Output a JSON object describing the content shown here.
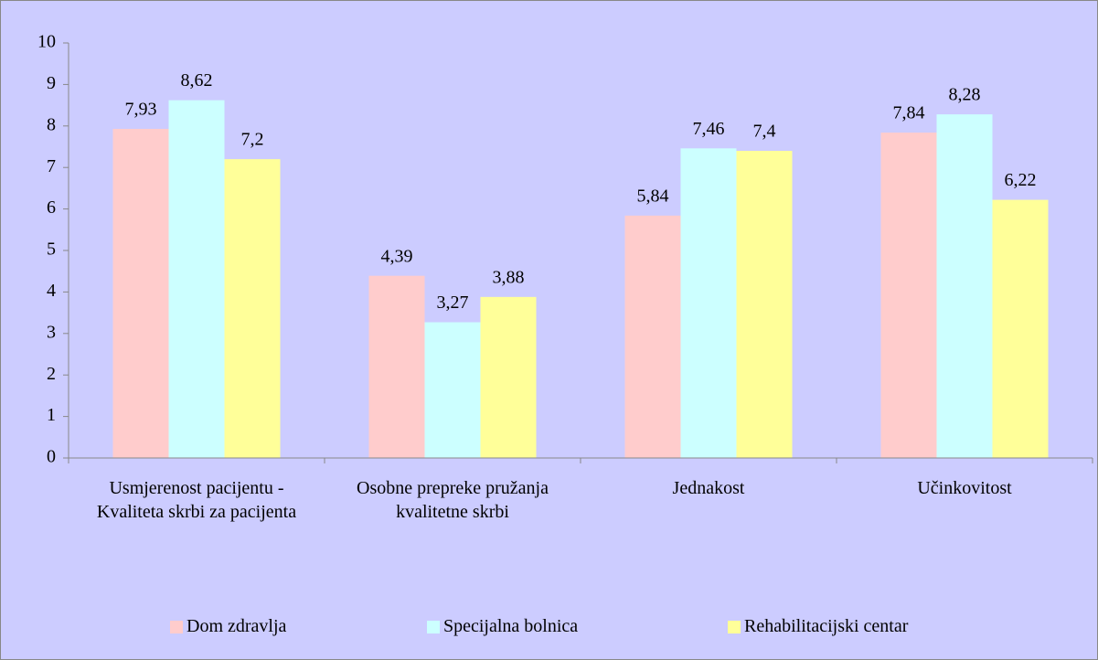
{
  "chart_data": {
    "type": "bar",
    "categories": [
      "Usmjerenost pacijentu - Kvaliteta skrbi za pacijenta",
      "Osobne prepreke pružanja kvalitetne skrbi",
      "Jednakost",
      "Učinkovitost"
    ],
    "series": [
      {
        "name": "Dom zdravlja",
        "color": "#ffcccc",
        "values": [
          7.93,
          4.39,
          5.84,
          7.84
        ],
        "value_labels": [
          "7,93",
          "4,39",
          "5,84",
          "7,84"
        ]
      },
      {
        "name": "Specijalna bolnica",
        "color": "#ccffff",
        "values": [
          8.62,
          3.27,
          7.46,
          8.28
        ],
        "value_labels": [
          "8,62",
          "3,27",
          "7,46",
          "8,28"
        ]
      },
      {
        "name": "Rehabilitacijski centar",
        "color": "#ffff99",
        "values": [
          7.2,
          3.88,
          7.4,
          6.22
        ],
        "value_labels": [
          "7,2",
          "3,88",
          "7,4",
          "6,22"
        ]
      }
    ],
    "ylim": [
      0,
      10
    ],
    "yticks": [
      0,
      1,
      2,
      3,
      4,
      5,
      6,
      7,
      8,
      9,
      10
    ],
    "grid": false,
    "legend": "bottom"
  }
}
